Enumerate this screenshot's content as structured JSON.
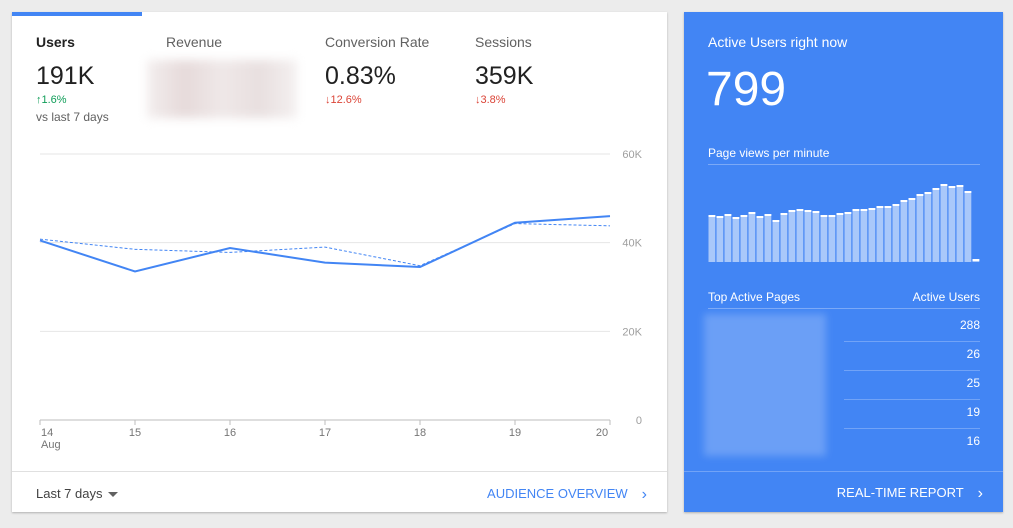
{
  "overview": {
    "tabs": [
      {
        "label": "Users",
        "value": "191K",
        "delta": "1.6%",
        "dir": "up",
        "vs": "vs last 7 days"
      },
      {
        "label": "Revenue"
      },
      {
        "label": "Conversion Rate",
        "value": "0.83%",
        "delta": "12.6%",
        "dir": "down"
      },
      {
        "label": "Sessions",
        "value": "359K",
        "delta": "3.8%",
        "dir": "down"
      }
    ],
    "date_range": "Last 7 days",
    "report_link": "AUDIENCE OVERVIEW"
  },
  "chart_data": {
    "type": "line",
    "x": [
      "14",
      "15",
      "16",
      "17",
      "18",
      "19",
      "20"
    ],
    "x_sublabel": "Aug",
    "series": [
      {
        "style": "solid",
        "values": [
          40500,
          33500,
          38800,
          35500,
          34500,
          44500,
          46000
        ]
      },
      {
        "style": "dashed",
        "values": [
          40800,
          38500,
          37800,
          39000,
          34800,
          44300,
          43800
        ]
      }
    ],
    "ylim": [
      0,
      60000
    ],
    "yticks": [
      "0",
      "20K",
      "40K",
      "60K"
    ],
    "ytick_values": [
      0,
      20000,
      40000,
      60000
    ],
    "grid": true
  },
  "realtime": {
    "title": "Active Users right now",
    "count": "799",
    "pageviews_label": "Page views per minute",
    "pageviews": [
      47,
      46,
      48,
      45,
      47,
      50,
      46,
      48,
      42,
      49,
      52,
      53,
      52,
      51,
      47,
      47,
      49,
      50,
      53,
      53,
      54,
      56,
      56,
      58,
      62,
      64,
      68,
      70,
      74,
      78,
      76,
      77,
      71,
      3
    ],
    "top_pages_label": "Top Active Pages",
    "active_users_label": "Active Users",
    "top_pages_counts": [
      "288",
      "26",
      "25",
      "19",
      "16"
    ],
    "report_link": "REAL-TIME REPORT"
  },
  "colors": {
    "accent": "#4285f4",
    "up": "#0f9d58",
    "down": "#db4437"
  }
}
